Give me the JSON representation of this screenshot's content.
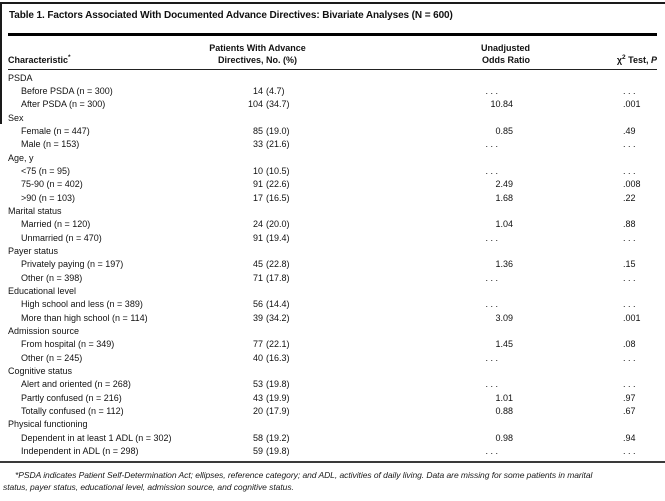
{
  "title": "Table 1. Factors Associated With Documented Advance Directives: Bivariate Analyses (N = 600)",
  "header": {
    "characteristic": "Characteristic",
    "characteristic_marker": "*",
    "patients_line1": "Patients With Advance",
    "patients_line2": "Directives, No. (%)",
    "odds_line1": "Unadjusted",
    "odds_line2": "Odds Ratio",
    "chi_symbol": "χ",
    "chi_exponent": "2",
    "chi_label": " Test, ",
    "chi_p": "P"
  },
  "table": {
    "ellipsis": ". . .",
    "rows": [
      {
        "label": "PSDA",
        "group": true,
        "count": "",
        "pct": "",
        "or": "",
        "p": ""
      },
      {
        "label": "Before PSDA (n = 300)",
        "indent": true,
        "count": "14",
        "pct": "(4.7)",
        "or": ". . .",
        "p": ". . ."
      },
      {
        "label": "After PSDA (n = 300)",
        "indent": true,
        "count": "104",
        "pct": "(34.7)",
        "or": "10.84",
        "p": ".001"
      },
      {
        "label": "Sex",
        "group": true,
        "count": "",
        "pct": "",
        "or": "",
        "p": ""
      },
      {
        "label": "Female (n = 447)",
        "indent": true,
        "count": "85",
        "pct": "(19.0)",
        "or": "0.85",
        "p": ".49"
      },
      {
        "label": "Male (n = 153)",
        "indent": true,
        "count": "33",
        "pct": "(21.6)",
        "or": ". . .",
        "p": ". . ."
      },
      {
        "label": "Age, y",
        "group": true,
        "count": "",
        "pct": "",
        "or": "",
        "p": ""
      },
      {
        "label": "<75 (n = 95)",
        "indent": true,
        "count": "10",
        "pct": "(10.5)",
        "or": ". . .",
        "p": ". . ."
      },
      {
        "label": "75-90 (n = 402)",
        "indent": true,
        "count": "91",
        "pct": "(22.6)",
        "or": "2.49",
        "p": ".008"
      },
      {
        "label": ">90 (n = 103)",
        "indent": true,
        "count": "17",
        "pct": "(16.5)",
        "or": "1.68",
        "p": ".22"
      },
      {
        "label": "Marital status",
        "group": true,
        "count": "",
        "pct": "",
        "or": "",
        "p": ""
      },
      {
        "label": "Married (n = 120)",
        "indent": true,
        "count": "24",
        "pct": "(20.0)",
        "or": "1.04",
        "p": ".88"
      },
      {
        "label": "Unmarried (n = 470)",
        "indent": true,
        "count": "91",
        "pct": "(19.4)",
        "or": ". . .",
        "p": ". . ."
      },
      {
        "label": "Payer status",
        "group": true,
        "count": "",
        "pct": "",
        "or": "",
        "p": ""
      },
      {
        "label": "Privately paying (n = 197)",
        "indent": true,
        "count": "45",
        "pct": "(22.8)",
        "or": "1.36",
        "p": ".15"
      },
      {
        "label": "Other (n = 398)",
        "indent": true,
        "count": "71",
        "pct": "(17.8)",
        "or": ". . .",
        "p": ". . ."
      },
      {
        "label": "Educational level",
        "group": true,
        "count": "",
        "pct": "",
        "or": "",
        "p": ""
      },
      {
        "label": "High school and less (n = 389)",
        "indent": true,
        "count": "56",
        "pct": "(14.4)",
        "or": ". . .",
        "p": ". . ."
      },
      {
        "label": "More than high school (n = 114)",
        "indent": true,
        "count": "39",
        "pct": "(34.2)",
        "or": "3.09",
        "p": ".001"
      },
      {
        "label": "Admission source",
        "group": true,
        "count": "",
        "pct": "",
        "or": "",
        "p": ""
      },
      {
        "label": "From hospital (n = 349)",
        "indent": true,
        "count": "77",
        "pct": "(22.1)",
        "or": "1.45",
        "p": ".08"
      },
      {
        "label": "Other (n = 245)",
        "indent": true,
        "count": "40",
        "pct": "(16.3)",
        "or": ". . .",
        "p": ". . ."
      },
      {
        "label": "Cognitive status",
        "group": true,
        "count": "",
        "pct": "",
        "or": "",
        "p": ""
      },
      {
        "label": "Alert and oriented (n = 268)",
        "indent": true,
        "count": "53",
        "pct": "(19.8)",
        "or": ". . .",
        "p": ". . ."
      },
      {
        "label": "Partly confused (n = 216)",
        "indent": true,
        "count": "43",
        "pct": "(19.9)",
        "or": "1.01",
        "p": ".97"
      },
      {
        "label": "Totally confused (n = 112)",
        "indent": true,
        "count": "20",
        "pct": "(17.9)",
        "or": "0.88",
        "p": ".67"
      },
      {
        "label": "Physical functioning",
        "group": true,
        "count": "",
        "pct": "",
        "or": "",
        "p": ""
      },
      {
        "label": "Dependent in at least 1 ADL (n = 302)",
        "indent": true,
        "count": "58",
        "pct": "(19.2)",
        "or": "0.98",
        "p": ".94"
      },
      {
        "label": "Independent in ADL (n = 298)",
        "indent": true,
        "count": "59",
        "pct": "(19.8)",
        "or": ". . .",
        "p": ". . ."
      }
    ]
  },
  "footnote": {
    "line1": "*PSDA indicates Patient Self-Determination Act; ellipses, reference category; and ADL, activities of daily living. Data are missing for some patients in marital",
    "line2": "status, payer status, educational level, admission source, and cognitive status."
  }
}
